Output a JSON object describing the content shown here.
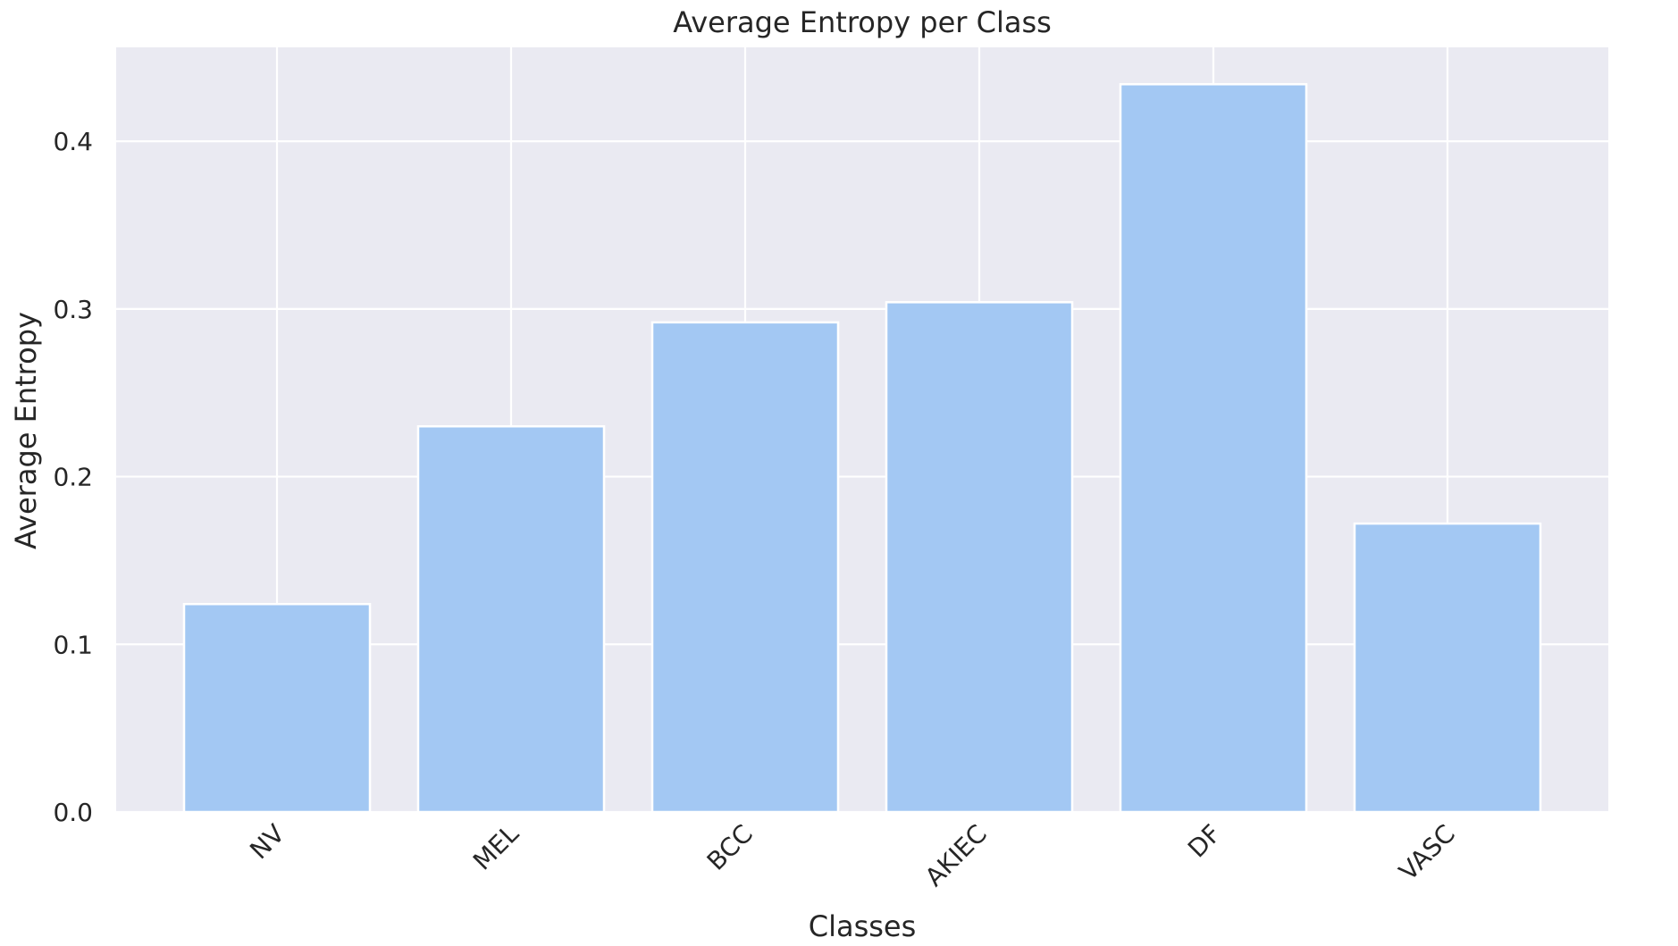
{
  "chart_data": {
    "type": "bar",
    "title": "Average Entropy per Class",
    "xlabel": "Classes",
    "ylabel": "Average Entropy",
    "categories": [
      "NV",
      "MEL",
      "BCC",
      "AKIEC",
      "DF",
      "VASC"
    ],
    "values": [
      0.124,
      0.23,
      0.292,
      0.304,
      0.434,
      0.172
    ],
    "ylim": [
      0,
      0.456
    ],
    "yticks": [
      0.0,
      0.1,
      0.2,
      0.3,
      0.4
    ],
    "ytick_labels": [
      "0.0",
      "0.1",
      "0.2",
      "0.3",
      "0.4"
    ],
    "grid": true,
    "colors": {
      "bar": "#a3c8f3",
      "plot_background": "#eaeaf2",
      "grid": "#ffffff",
      "text": "#262626"
    }
  }
}
